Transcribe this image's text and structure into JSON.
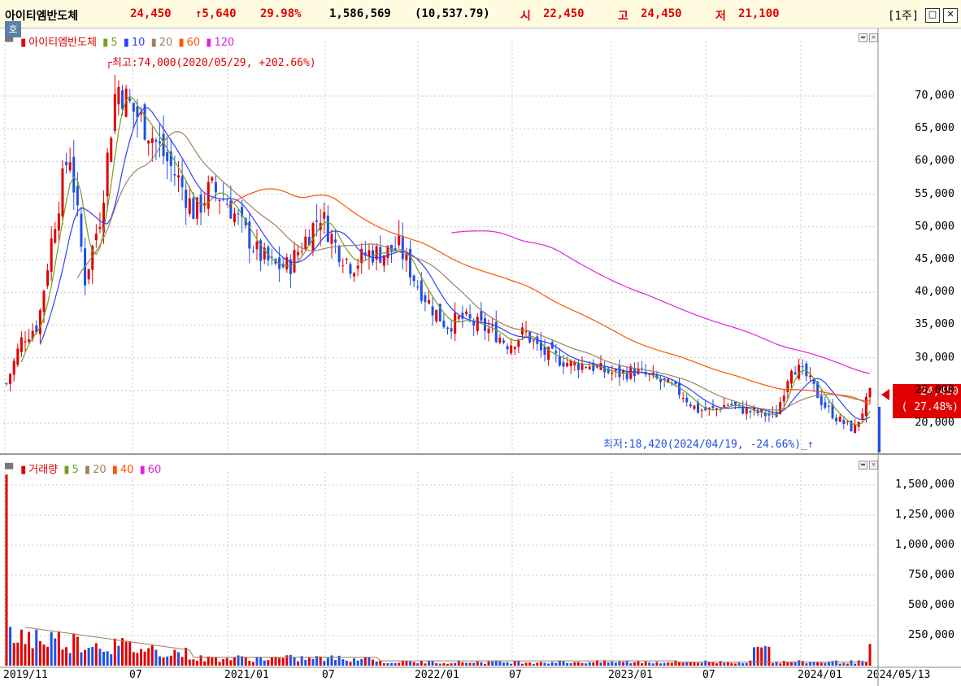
{
  "header": {
    "name": "아이티엠반도체",
    "price": "24,450",
    "change": "↑5,640",
    "change_pct": "29.98%",
    "volume": "1,586,569",
    "amount": "(10,537.79)",
    "open_label": "시",
    "open": "22,450",
    "high_label": "고",
    "high": "24,450",
    "low_label": "저",
    "low": "21,100",
    "period": "[1주]"
  },
  "price_legend": {
    "name": "아이티엠반도체",
    "ma": [
      "5",
      "10",
      "20",
      "60",
      "120"
    ]
  },
  "volume_legend": {
    "name": "거래량",
    "ma": [
      "5",
      "20",
      "40",
      "60"
    ]
  },
  "ho_button": "호",
  "annotations": {
    "high": "최고:74,000(2020/05/29, +202.66%)",
    "low": "최저:18,420(2024/04/19, -24.66%)"
  },
  "current_tag": {
    "price": "24,450",
    "pct": "( 27.48%)"
  },
  "colors": {
    "up": "#e00000",
    "down": "#1f4fe8",
    "ma5": "#70a020",
    "ma10": "#3040ff",
    "ma20": "#a08060",
    "ma60": "#ff5500",
    "ma120": "#dd22dd"
  },
  "chart_data": {
    "type": "candlestick",
    "period": "weekly",
    "price_axis": {
      "ticks": [
        "70,000",
        "65,000",
        "60,000",
        "55,000",
        "50,000",
        "45,000",
        "40,000",
        "35,000",
        "30,000",
        "25,000",
        "20,000"
      ],
      "range": [
        18000,
        77000
      ]
    },
    "volume_axis": {
      "ticks": [
        "1,500,000",
        "1,250,000",
        "1,000,000",
        "750,000",
        "500,000",
        "250,000"
      ]
    },
    "x_labels": [
      "2019/11",
      "07",
      "2021/01",
      "07",
      "2022/01",
      "07",
      "2023/01",
      "07",
      "2024/01",
      "2024/05/13"
    ],
    "price_path": [
      [
        "2019-11",
        26000
      ],
      [
        "2019-12",
        33000
      ],
      [
        "2020-01",
        35000
      ],
      [
        "2020-02",
        50000
      ],
      [
        "2020-03",
        62000
      ],
      [
        "2020-03b",
        42000
      ],
      [
        "2020-04",
        52000
      ],
      [
        "2020-05",
        72000
      ],
      [
        "2020-06",
        68000
      ],
      [
        "2020-07",
        65000
      ],
      [
        "2020-08",
        61000
      ],
      [
        "2020-09",
        57000
      ],
      [
        "2020-10",
        52000
      ],
      [
        "2020-11",
        56000
      ],
      [
        "2020-12",
        54000
      ],
      [
        "2021-01",
        50000
      ],
      [
        "2021-02",
        46000
      ],
      [
        "2021-03",
        44000
      ],
      [
        "2021-04",
        44000
      ],
      [
        "2021-05",
        48000
      ],
      [
        "2021-06",
        52000
      ],
      [
        "2021-07",
        47000
      ],
      [
        "2021-08",
        44000
      ],
      [
        "2021-09",
        46000
      ],
      [
        "2021-10",
        46000
      ],
      [
        "2021-11",
        47000
      ],
      [
        "2021-12",
        42000
      ],
      [
        "2022-01",
        38000
      ],
      [
        "2022-02",
        35000
      ],
      [
        "2022-03",
        36000
      ],
      [
        "2022-04",
        35000
      ],
      [
        "2022-05",
        34000
      ],
      [
        "2022-06",
        32000
      ],
      [
        "2022-07",
        34000
      ],
      [
        "2022-08",
        31000
      ],
      [
        "2022-09",
        30000
      ],
      [
        "2022-10",
        29000
      ],
      [
        "2022-11",
        29000
      ],
      [
        "2022-12",
        28000
      ],
      [
        "2023-01",
        27500
      ],
      [
        "2023-02",
        28000
      ],
      [
        "2023-03",
        27000
      ],
      [
        "2023-04",
        26000
      ],
      [
        "2023-05",
        24500
      ],
      [
        "2023-06",
        22000
      ],
      [
        "2023-07",
        22000
      ],
      [
        "2023-08",
        23000
      ],
      [
        "2023-09",
        22000
      ],
      [
        "2023-10",
        21500
      ],
      [
        "2023-11",
        21000
      ],
      [
        "2023-12",
        29000
      ],
      [
        "2024-01",
        27000
      ],
      [
        "2024-02",
        23000
      ],
      [
        "2024-03",
        20500
      ],
      [
        "2024-04",
        19000
      ],
      [
        "2024-05",
        24450
      ]
    ],
    "ma120_start": "2022-01",
    "volume_note": "spike at start ~1,586,569 and final week 1,586,569"
  }
}
